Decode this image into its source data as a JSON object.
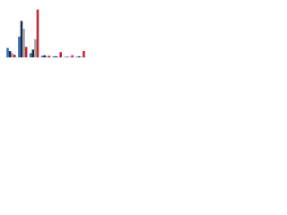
{
  "chart_data": {
    "type": "bar",
    "categories": [
      null,
      null,
      null,
      null,
      null,
      null,
      null
    ],
    "series": [
      {
        "name": null,
        "color": "#2f6db5",
        "values": [
          18,
          40,
          8,
          3,
          2,
          1,
          1
        ]
      },
      {
        "name": null,
        "color": "#1c2b4a",
        "values": [
          12,
          70,
          15,
          4,
          2,
          1,
          2
        ]
      },
      {
        "name": null,
        "color": "#a8a8a8",
        "values": [
          8,
          55,
          35,
          2,
          1,
          1,
          1
        ]
      },
      {
        "name": null,
        "color": "#c3262b",
        "values": [
          5,
          20,
          92,
          3,
          10,
          4,
          12
        ]
      }
    ],
    "ylim": [
      0,
      100
    ]
  }
}
